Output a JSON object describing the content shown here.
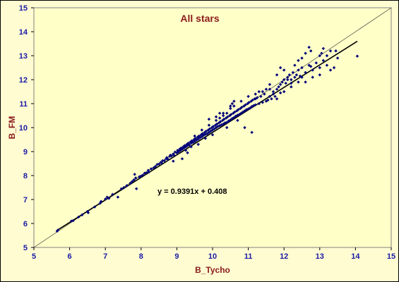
{
  "chart_data": {
    "type": "scatter",
    "title": "All stars",
    "xlabel": "B_Tycho",
    "ylabel": "B_FM",
    "xlim": [
      5,
      15
    ],
    "ylim": [
      5,
      15
    ],
    "xticks": [
      "5",
      "6",
      "7",
      "8",
      "9",
      "10",
      "11",
      "12",
      "13",
      "14",
      "15"
    ],
    "yticks": [
      "5",
      "6",
      "7",
      "8",
      "9",
      "10",
      "11",
      "12",
      "13",
      "14",
      "15"
    ],
    "grid": false,
    "legend": "none",
    "equation": "y = 0.9391x + 0.408",
    "trendline": {
      "slope": 0.9391,
      "intercept": 0.408,
      "x_range": [
        5.65,
        14.05
      ]
    },
    "reference_line": {
      "from": [
        5,
        5
      ],
      "to": [
        15,
        15
      ]
    },
    "colors": {
      "plot_bg": "#ffffc8",
      "points": "#00007a",
      "title": "#8b1a1a",
      "tick_labels": "#1a1aa6"
    },
    "series": [
      {
        "points": [
          [
            5.65,
            5.68
          ],
          [
            5.67,
            5.72
          ],
          [
            6.05,
            6.1
          ],
          [
            6.1,
            6.12
          ],
          [
            6.25,
            6.27
          ],
          [
            6.35,
            6.36
          ],
          [
            6.5,
            6.5
          ],
          [
            6.52,
            6.45
          ],
          [
            6.7,
            6.69
          ],
          [
            6.85,
            6.84
          ],
          [
            6.88,
            6.92
          ],
          [
            7.0,
            7.02
          ],
          [
            7.05,
            7.1
          ],
          [
            7.1,
            7.05
          ],
          [
            7.2,
            7.21
          ],
          [
            7.35,
            7.1
          ],
          [
            7.45,
            7.45
          ],
          [
            7.52,
            7.5
          ],
          [
            7.6,
            7.58
          ],
          [
            7.7,
            7.68
          ],
          [
            7.75,
            7.75
          ],
          [
            7.8,
            7.82
          ],
          [
            7.85,
            7.9
          ],
          [
            7.82,
            8.05
          ],
          [
            7.87,
            7.45
          ],
          [
            7.95,
            7.95
          ],
          [
            8.0,
            7.98
          ],
          [
            8.05,
            8.02
          ],
          [
            8.1,
            8.1
          ],
          [
            8.15,
            8.12
          ],
          [
            8.2,
            8.22
          ],
          [
            8.22,
            8.15
          ],
          [
            8.28,
            8.28
          ],
          [
            8.35,
            8.32
          ],
          [
            8.4,
            8.38
          ],
          [
            8.45,
            8.46
          ],
          [
            8.5,
            8.48
          ],
          [
            8.55,
            8.55
          ],
          [
            8.58,
            8.52
          ],
          [
            8.6,
            8.62
          ],
          [
            8.65,
            8.62
          ],
          [
            8.7,
            8.7
          ],
          [
            8.72,
            8.75
          ],
          [
            8.75,
            8.68
          ],
          [
            8.8,
            8.8
          ],
          [
            8.82,
            8.85
          ],
          [
            8.85,
            8.82
          ],
          [
            8.9,
            8.9
          ],
          [
            8.92,
            8.85
          ],
          [
            8.95,
            8.98
          ],
          [
            9.0,
            8.95
          ],
          [
            9.02,
            9.05
          ],
          [
            9.05,
            9.0
          ],
          [
            9.08,
            9.1
          ],
          [
            9.1,
            9.05
          ],
          [
            9.12,
            9.15
          ],
          [
            9.15,
            9.1
          ],
          [
            9.18,
            9.2
          ],
          [
            9.2,
            9.15
          ],
          [
            9.22,
            9.25
          ],
          [
            9.25,
            9.2
          ],
          [
            9.28,
            9.3
          ],
          [
            9.3,
            9.25
          ],
          [
            9.32,
            9.35
          ],
          [
            9.35,
            9.28
          ],
          [
            9.38,
            9.4
          ],
          [
            9.4,
            9.35
          ],
          [
            9.42,
            9.45
          ],
          [
            9.45,
            9.38
          ],
          [
            9.48,
            9.5
          ],
          [
            9.5,
            9.42
          ],
          [
            9.52,
            9.55
          ],
          [
            9.55,
            9.48
          ],
          [
            9.58,
            9.6
          ],
          [
            9.6,
            9.52
          ],
          [
            9.62,
            9.65
          ],
          [
            9.65,
            9.58
          ],
          [
            9.68,
            9.7
          ],
          [
            9.7,
            9.62
          ],
          [
            9.72,
            9.75
          ],
          [
            9.75,
            9.68
          ],
          [
            9.78,
            9.8
          ],
          [
            9.8,
            9.72
          ],
          [
            9.82,
            9.85
          ],
          [
            9.85,
            9.75
          ],
          [
            9.88,
            9.9
          ],
          [
            9.9,
            9.8
          ],
          [
            9.92,
            9.95
          ],
          [
            9.95,
            9.85
          ],
          [
            9.98,
            10.0
          ],
          [
            10.0,
            9.9
          ],
          [
            10.02,
            10.05
          ],
          [
            10.05,
            9.95
          ],
          [
            10.08,
            10.1
          ],
          [
            10.1,
            10.0
          ],
          [
            10.12,
            10.15
          ],
          [
            10.15,
            10.05
          ],
          [
            10.18,
            10.2
          ],
          [
            10.2,
            10.08
          ],
          [
            10.22,
            10.25
          ],
          [
            10.25,
            10.12
          ],
          [
            10.28,
            10.3
          ],
          [
            10.3,
            10.15
          ],
          [
            10.32,
            10.35
          ],
          [
            10.35,
            10.2
          ],
          [
            10.38,
            10.4
          ],
          [
            10.4,
            10.22
          ],
          [
            10.42,
            10.45
          ],
          [
            10.45,
            10.28
          ],
          [
            10.48,
            10.5
          ],
          [
            10.5,
            10.32
          ],
          [
            10.52,
            10.55
          ],
          [
            10.55,
            10.38
          ],
          [
            10.58,
            10.6
          ],
          [
            10.6,
            10.42
          ],
          [
            10.62,
            10.65
          ],
          [
            10.65,
            10.48
          ],
          [
            10.68,
            10.7
          ],
          [
            10.7,
            10.52
          ],
          [
            10.72,
            10.75
          ],
          [
            10.75,
            10.55
          ],
          [
            10.78,
            10.8
          ],
          [
            10.8,
            10.6
          ],
          [
            10.82,
            10.85
          ],
          [
            10.85,
            10.65
          ],
          [
            10.88,
            10.9
          ],
          [
            10.9,
            10.7
          ],
          [
            10.92,
            10.95
          ],
          [
            10.95,
            10.75
          ],
          [
            10.98,
            11.0
          ],
          [
            11.0,
            10.78
          ],
          [
            11.02,
            11.05
          ],
          [
            11.05,
            10.82
          ],
          [
            11.08,
            11.1
          ],
          [
            11.1,
            10.88
          ],
          [
            11.12,
            11.15
          ],
          [
            11.15,
            10.92
          ],
          [
            11.18,
            11.2
          ],
          [
            11.2,
            10.95
          ],
          [
            11.25,
            11.25
          ],
          [
            11.3,
            11.0
          ],
          [
            11.35,
            11.3
          ],
          [
            11.4,
            11.05
          ],
          [
            11.45,
            11.4
          ],
          [
            11.5,
            11.1
          ],
          [
            11.55,
            11.15
          ],
          [
            11.6,
            11.3
          ],
          [
            11.65,
            11.2
          ],
          [
            11.7,
            11.5
          ],
          [
            11.75,
            11.3
          ],
          [
            11.8,
            11.6
          ],
          [
            11.85,
            11.7
          ],
          [
            11.9,
            11.8
          ],
          [
            11.95,
            11.9
          ],
          [
            12.0,
            12.0
          ],
          [
            12.05,
            11.85
          ],
          [
            12.1,
            12.1
          ],
          [
            12.15,
            12.2
          ],
          [
            12.2,
            12.0
          ],
          [
            12.25,
            12.3
          ],
          [
            12.3,
            12.1
          ],
          [
            12.35,
            12.2
          ],
          [
            12.4,
            12.4
          ],
          [
            12.5,
            12.5
          ],
          [
            12.6,
            12.3
          ],
          [
            12.7,
            12.6
          ],
          [
            12.8,
            12.4
          ],
          [
            12.9,
            12.7
          ],
          [
            13.0,
            12.5
          ],
          [
            13.1,
            12.8
          ],
          [
            13.2,
            12.6
          ],
          [
            13.3,
            12.4
          ],
          [
            13.4,
            12.5
          ],
          [
            13.0,
            12.2
          ],
          [
            12.8,
            12.1
          ],
          [
            12.6,
            11.9
          ],
          [
            12.2,
            11.7
          ],
          [
            12.0,
            11.5
          ],
          [
            11.9,
            12.5
          ],
          [
            11.8,
            12.2
          ],
          [
            12.0,
            12.4
          ],
          [
            12.3,
            12.6
          ],
          [
            12.5,
            12.9
          ],
          [
            12.6,
            13.1
          ],
          [
            12.7,
            13.35
          ],
          [
            12.75,
            13.2
          ],
          [
            13.05,
            13.1
          ],
          [
            13.1,
            13.3
          ],
          [
            13.2,
            13.0
          ],
          [
            13.45,
            13.2
          ],
          [
            13.5,
            12.9
          ],
          [
            14.05,
            12.98
          ],
          [
            12.4,
            12.8
          ],
          [
            12.1,
            12.0
          ],
          [
            11.7,
            11.4
          ],
          [
            11.6,
            11.6
          ],
          [
            11.4,
            11.5
          ],
          [
            11.2,
            11.2
          ],
          [
            11.0,
            11.3
          ],
          [
            10.8,
            11.1
          ],
          [
            10.6,
            10.9
          ],
          [
            10.5,
            10.8
          ],
          [
            10.4,
            10.6
          ],
          [
            10.3,
            10.5
          ],
          [
            10.2,
            10.4
          ],
          [
            10.5,
            10.9
          ],
          [
            10.55,
            11.0
          ],
          [
            10.6,
            11.1
          ],
          [
            10.7,
            10.3
          ],
          [
            10.9,
            10.0
          ],
          [
            11.1,
            9.8
          ],
          [
            10.4,
            10.0
          ],
          [
            9.6,
            9.3
          ],
          [
            9.4,
            9.2
          ],
          [
            9.3,
            8.95
          ],
          [
            9.25,
            9.05
          ],
          [
            9.5,
            9.65
          ],
          [
            9.7,
            9.9
          ],
          [
            9.9,
            10.1
          ],
          [
            10.1,
            10.3
          ],
          [
            10.2,
            10.6
          ],
          [
            9.8,
            9.55
          ],
          [
            10.0,
            9.7
          ],
          [
            9.15,
            8.7
          ],
          [
            8.9,
            8.6
          ],
          [
            9.9,
            10.35
          ],
          [
            10.1,
            10.45
          ],
          [
            10.3,
            10.6
          ],
          [
            11.2,
            11.4
          ],
          [
            11.3,
            11.5
          ],
          [
            11.5,
            11.6
          ],
          [
            11.6,
            11.8
          ],
          [
            12.4,
            11.9
          ],
          [
            12.5,
            12.1
          ],
          [
            13.0,
            13.0
          ],
          [
            13.3,
            13.2
          ],
          [
            11.8,
            11.2
          ],
          [
            11.9,
            11.45
          ],
          [
            12.2,
            11.85
          ],
          [
            12.45,
            12.15
          ],
          [
            12.75,
            12.55
          ]
        ]
      }
    ]
  }
}
